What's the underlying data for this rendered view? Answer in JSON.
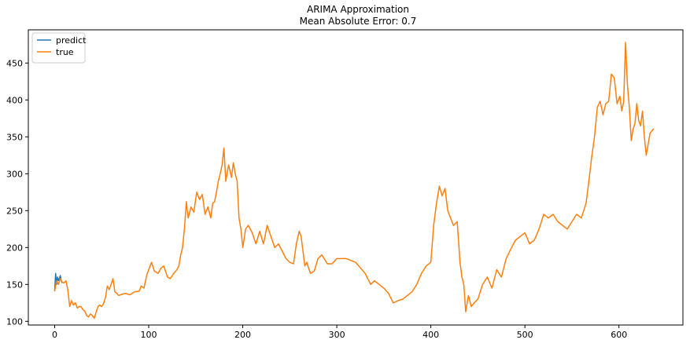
{
  "chart_data": {
    "type": "line",
    "title": "ARIMA Approximation",
    "subtitle": "Mean Absolute Error: 0.7",
    "xlabel": "",
    "ylabel": "",
    "xlim": [
      -28,
      668
    ],
    "ylim": [
      95,
      495
    ],
    "xticks": [
      0,
      100,
      200,
      300,
      400,
      500,
      600
    ],
    "yticks": [
      100,
      150,
      200,
      250,
      300,
      350,
      400,
      450
    ],
    "grid": false,
    "legend": "top-left",
    "series": [
      {
        "name": "predict",
        "color": "#1f77b4",
        "x": [
          0,
          1,
          2,
          3,
          4,
          5,
          6,
          7,
          8
        ],
        "y": [
          141,
          165,
          150,
          160,
          155,
          158,
          162,
          155,
          152
        ]
      },
      {
        "name": "true",
        "color": "#ff7f0e",
        "x": [
          0,
          2,
          4,
          6,
          8,
          10,
          12,
          14,
          16,
          18,
          20,
          22,
          24,
          26,
          28,
          30,
          32,
          34,
          36,
          38,
          40,
          42,
          44,
          46,
          48,
          50,
          52,
          54,
          56,
          58,
          60,
          62,
          64,
          66,
          68,
          70,
          75,
          80,
          85,
          90,
          92,
          95,
          98,
          100,
          103,
          106,
          110,
          113,
          116,
          120,
          123,
          126,
          130,
          132,
          134,
          136,
          138,
          140,
          142,
          145,
          148,
          151,
          154,
          157,
          160,
          163,
          166,
          168,
          170,
          172,
          174,
          176,
          178,
          180,
          182,
          185,
          188,
          190,
          192,
          194,
          196,
          198,
          200,
          203,
          206,
          210,
          214,
          218,
          222,
          226,
          230,
          234,
          238,
          242,
          246,
          250,
          254,
          257,
          260,
          262,
          264,
          266,
          268,
          272,
          276,
          280,
          284,
          290,
          295,
          300,
          310,
          320,
          330,
          336,
          340,
          345,
          350,
          355,
          360,
          365,
          370,
          375,
          380,
          385,
          390,
          395,
          400,
          403,
          406,
          409,
          412,
          415,
          418,
          421,
          424,
          428,
          431,
          433,
          435,
          437,
          440,
          443,
          446,
          450,
          455,
          460,
          465,
          470,
          475,
          480,
          485,
          490,
          495,
          500,
          505,
          510,
          515,
          520,
          525,
          530,
          535,
          540,
          545,
          550,
          555,
          560,
          565,
          568,
          571,
          574,
          577,
          580,
          583,
          586,
          589,
          592,
          595,
          598,
          601,
          603,
          605,
          607,
          609,
          611,
          613,
          615,
          617,
          619,
          621,
          623,
          625,
          627,
          629,
          631,
          633,
          635,
          637
        ],
        "y": [
          141,
          155,
          150,
          158,
          153,
          152,
          155,
          143,
          120,
          128,
          122,
          125,
          118,
          120,
          120,
          116,
          114,
          108,
          106,
          110,
          108,
          104,
          112,
          120,
          122,
          120,
          124,
          132,
          148,
          143,
          150,
          158,
          140,
          138,
          135,
          136,
          138,
          136,
          140,
          141,
          148,
          145,
          163,
          170,
          180,
          168,
          165,
          172,
          175,
          160,
          158,
          164,
          170,
          175,
          190,
          200,
          225,
          262,
          240,
          255,
          248,
          275,
          265,
          272,
          245,
          255,
          240,
          260,
          262,
          275,
          290,
          300,
          312,
          335,
          290,
          312,
          295,
          315,
          300,
          290,
          240,
          225,
          200,
          225,
          230,
          220,
          205,
          222,
          205,
          230,
          215,
          200,
          205,
          195,
          185,
          180,
          178,
          205,
          222,
          215,
          195,
          175,
          180,
          165,
          168,
          185,
          190,
          178,
          178,
          185,
          185,
          180,
          165,
          150,
          155,
          150,
          145,
          138,
          125,
          128,
          130,
          135,
          140,
          150,
          165,
          175,
          180,
          230,
          260,
          283,
          270,
          280,
          250,
          240,
          230,
          235,
          180,
          160,
          150,
          113,
          135,
          120,
          125,
          130,
          150,
          160,
          145,
          170,
          160,
          185,
          198,
          210,
          215,
          220,
          205,
          210,
          225,
          245,
          240,
          245,
          235,
          230,
          225,
          235,
          245,
          240,
          260,
          290,
          322,
          350,
          390,
          398,
          380,
          395,
          398,
          435,
          430,
          395,
          405,
          385,
          398,
          478,
          420,
          390,
          345,
          360,
          368,
          395,
          372,
          365,
          385,
          350,
          325,
          340,
          355,
          358,
          361
        ]
      }
    ]
  }
}
